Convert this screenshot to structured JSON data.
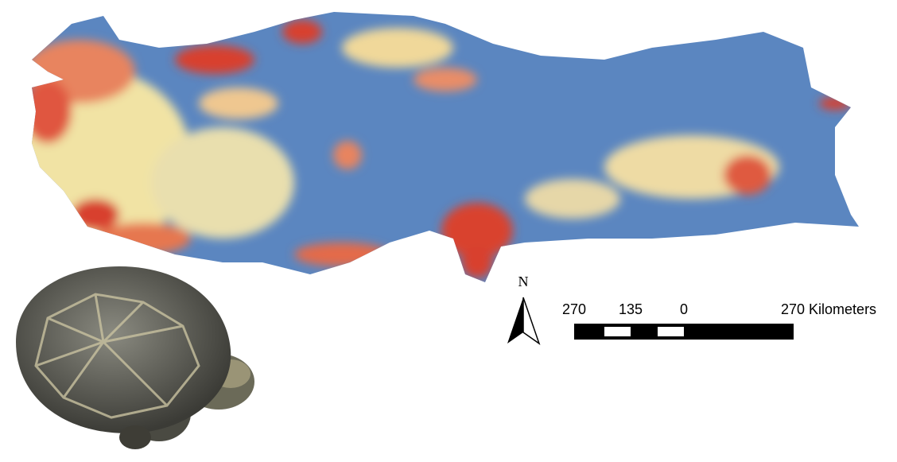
{
  "north_arrow": {
    "label": "N"
  },
  "scale_bar": {
    "labels": [
      "270",
      "135",
      "0",
      "270 Kilometers"
    ]
  }
}
